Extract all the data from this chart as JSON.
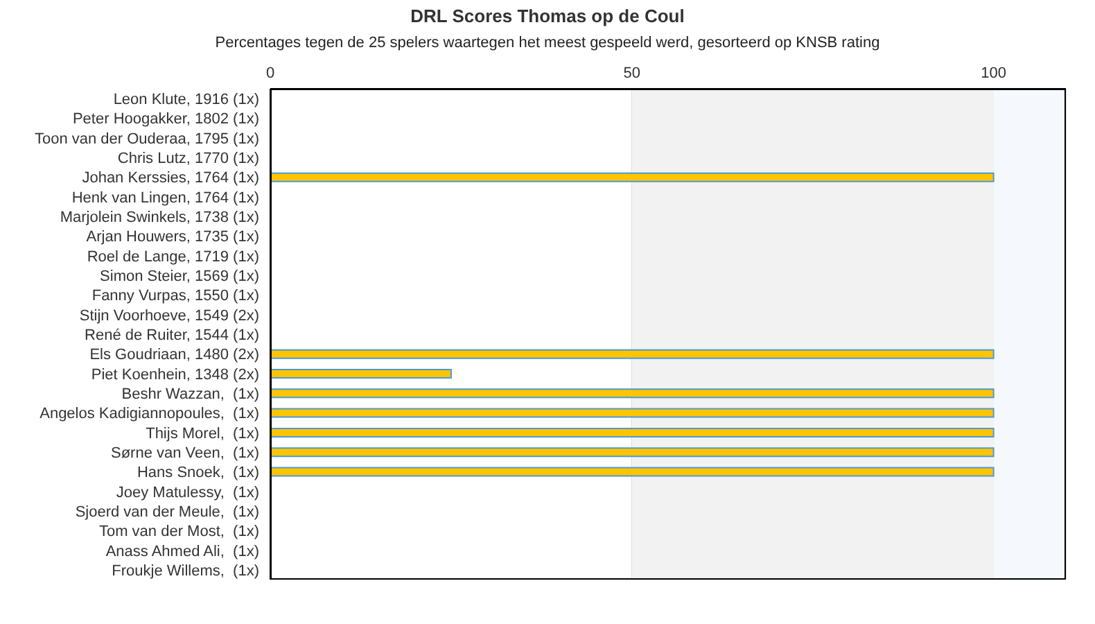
{
  "chart_data": {
    "type": "bar",
    "orientation": "horizontal",
    "title": "DRL Scores Thomas op de Coul",
    "subtitle": "Percentages tegen de 25 spelers waartegen het meest gespeeld werd, gesorteerd op KNSB rating",
    "categories": [
      "Leon Klute, 1916 (1x)",
      "Peter Hoogakker, 1802 (1x)",
      "Toon van der Ouderaa, 1795 (1x)",
      "Chris Lutz, 1770 (1x)",
      "Johan Kerssies, 1764 (1x)",
      "Henk van Lingen, 1764 (1x)",
      "Marjolein Swinkels, 1738 (1x)",
      "Arjan Houwers, 1735 (1x)",
      "Roel de Lange, 1719 (1x)",
      "Simon Steier, 1569 (1x)",
      "Fanny Vurpas, 1550 (1x)",
      "Stijn Voorhoeve, 1549 (2x)",
      "René de Ruiter, 1544 (1x)",
      "Els Goudriaan, 1480 (2x)",
      "Piet Koenhein, 1348 (2x)",
      "Beshr Wazzan,  (1x)",
      "Angelos Kadigiannopoules,  (1x)",
      "Thijs Morel,  (1x)",
      "Sørne van Veen,  (1x)",
      "Hans Snoek,  (1x)",
      "Joey Matulessy,  (1x)",
      "Sjoerd van der Meule,  (1x)",
      "Tom van der Most,  (1x)",
      "Anass Ahmed Ali,  (1x)",
      "Froukje Willems,  (1x)"
    ],
    "values": [
      0,
      0,
      0,
      0,
      100,
      0,
      0,
      0,
      0,
      0,
      0,
      0,
      0,
      100,
      25,
      100,
      100,
      100,
      100,
      100,
      0,
      0,
      0,
      0,
      0
    ],
    "color": "#ffc400",
    "xlim": [
      0,
      110
    ],
    "xticks": [
      0,
      50,
      100
    ],
    "grid": "x",
    "legend": false,
    "bands": [
      {
        "axis": "x",
        "from": 50,
        "to": 100,
        "color": "#f2f2f2"
      },
      {
        "axis": "x",
        "from": 100,
        "to": 110,
        "color": "#f5f8fc"
      }
    ]
  }
}
